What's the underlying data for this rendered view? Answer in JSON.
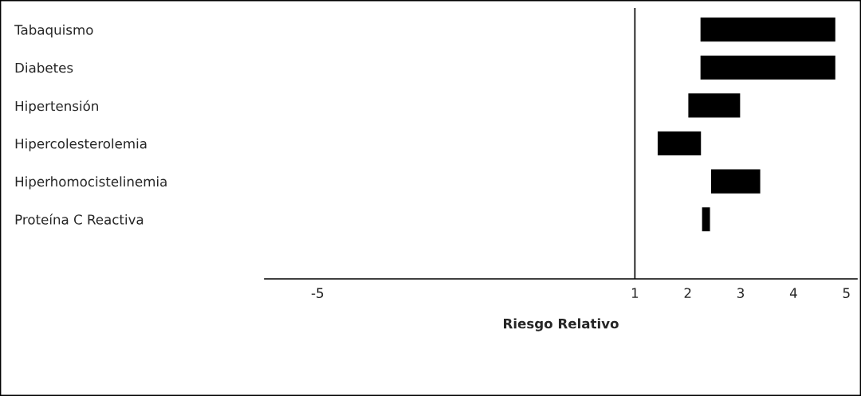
{
  "chart_data": {
    "type": "bar",
    "orientation": "horizontal",
    "xlabel": "Riesgo Relativo",
    "categories": [
      "Tabaquismo",
      "Diabetes",
      "Hipertensión",
      "Hipercolesterolemia",
      "Hiperhomocistelinemia",
      "Proteína C Reactiva"
    ],
    "base": [
      2.23,
      2.23,
      2.0,
      1.42,
      2.43,
      2.26
    ],
    "values": [
      2.57,
      2.57,
      1.0,
      0.84,
      0.95,
      0.17
    ],
    "color": "#000000",
    "xlim": [
      -6,
      5.2
    ],
    "xticks": [
      -5,
      1,
      2,
      3,
      4,
      5
    ],
    "ref_lines": [
      {
        "axis": "x",
        "value": 1,
        "color": "#000000"
      }
    ],
    "grid": false
  }
}
